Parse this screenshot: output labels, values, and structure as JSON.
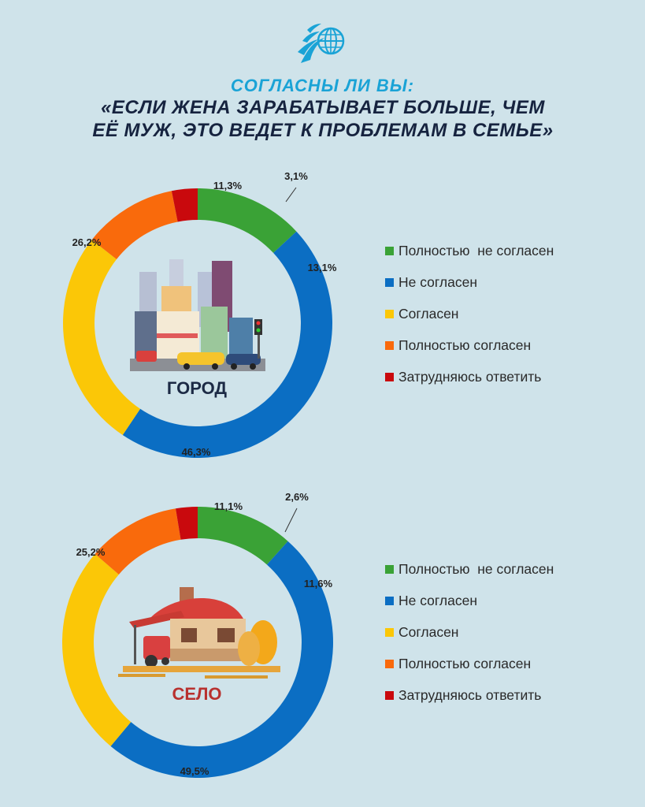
{
  "header": {
    "question": "СОГЛАСНЫ ЛИ ВЫ:",
    "statement_line1": "«ЕСЛИ ЖЕНА ЗАРАБАТЫВАЕТ БОЛЬШЕ, ЧЕМ",
    "statement_line2": "ЕЁ МУЖ, ЭТО ВЕДЕТ К ПРОБЛЕМАМ В СЕМЬЕ»"
  },
  "colors": {
    "green": "#3aa236",
    "blue": "#0b6ec3",
    "yellow": "#fbc707",
    "orange": "#f96a0c",
    "red": "#c9090d",
    "background": "#cfe3ea",
    "city_label": "#1c2a45",
    "village_label": "#b8312f"
  },
  "icons": [
    "eagle-globe-logo-icon",
    "city-illustration-icon",
    "village-illustration-icon"
  ],
  "chart_data": [
    {
      "type": "pie",
      "donut": true,
      "center_label": "ГОРОД",
      "categories": [
        "Полностью  не согласен",
        "Не согласен",
        "Согласен",
        "Полностью согласен",
        "Затрудняюсь ответить"
      ],
      "values": [
        13.1,
        46.3,
        26.2,
        11.3,
        3.1
      ],
      "value_labels": [
        "13,1%",
        "46,3%",
        "26,2%",
        "11,3%",
        "3,1%"
      ],
      "colors": [
        "#3aa236",
        "#0b6ec3",
        "#fbc707",
        "#f96a0c",
        "#c9090d"
      ],
      "legend": {
        "position": "right",
        "items": [
          "Полностью  не согласен",
          "Не согласен",
          "Согласен",
          "Полностью согласен",
          "Затрудняюсь ответить"
        ]
      }
    },
    {
      "type": "pie",
      "donut": true,
      "center_label": "СЕЛО",
      "categories": [
        "Полностью  не согласен",
        "Не согласен",
        "Согласен",
        "Полностью согласен",
        "Затрудняюсь ответить"
      ],
      "values": [
        11.6,
        49.5,
        25.2,
        11.1,
        2.6
      ],
      "value_labels": [
        "11,6%",
        "49,5%",
        "25,2%",
        "11,1%",
        "2,6%"
      ],
      "colors": [
        "#3aa236",
        "#0b6ec3",
        "#fbc707",
        "#f96a0c",
        "#c9090d"
      ],
      "legend": {
        "position": "right",
        "items": [
          "Полностью  не согласен",
          "Не согласен",
          "Согласен",
          "Полностью согласен",
          "Затрудняюсь ответить"
        ]
      }
    }
  ]
}
